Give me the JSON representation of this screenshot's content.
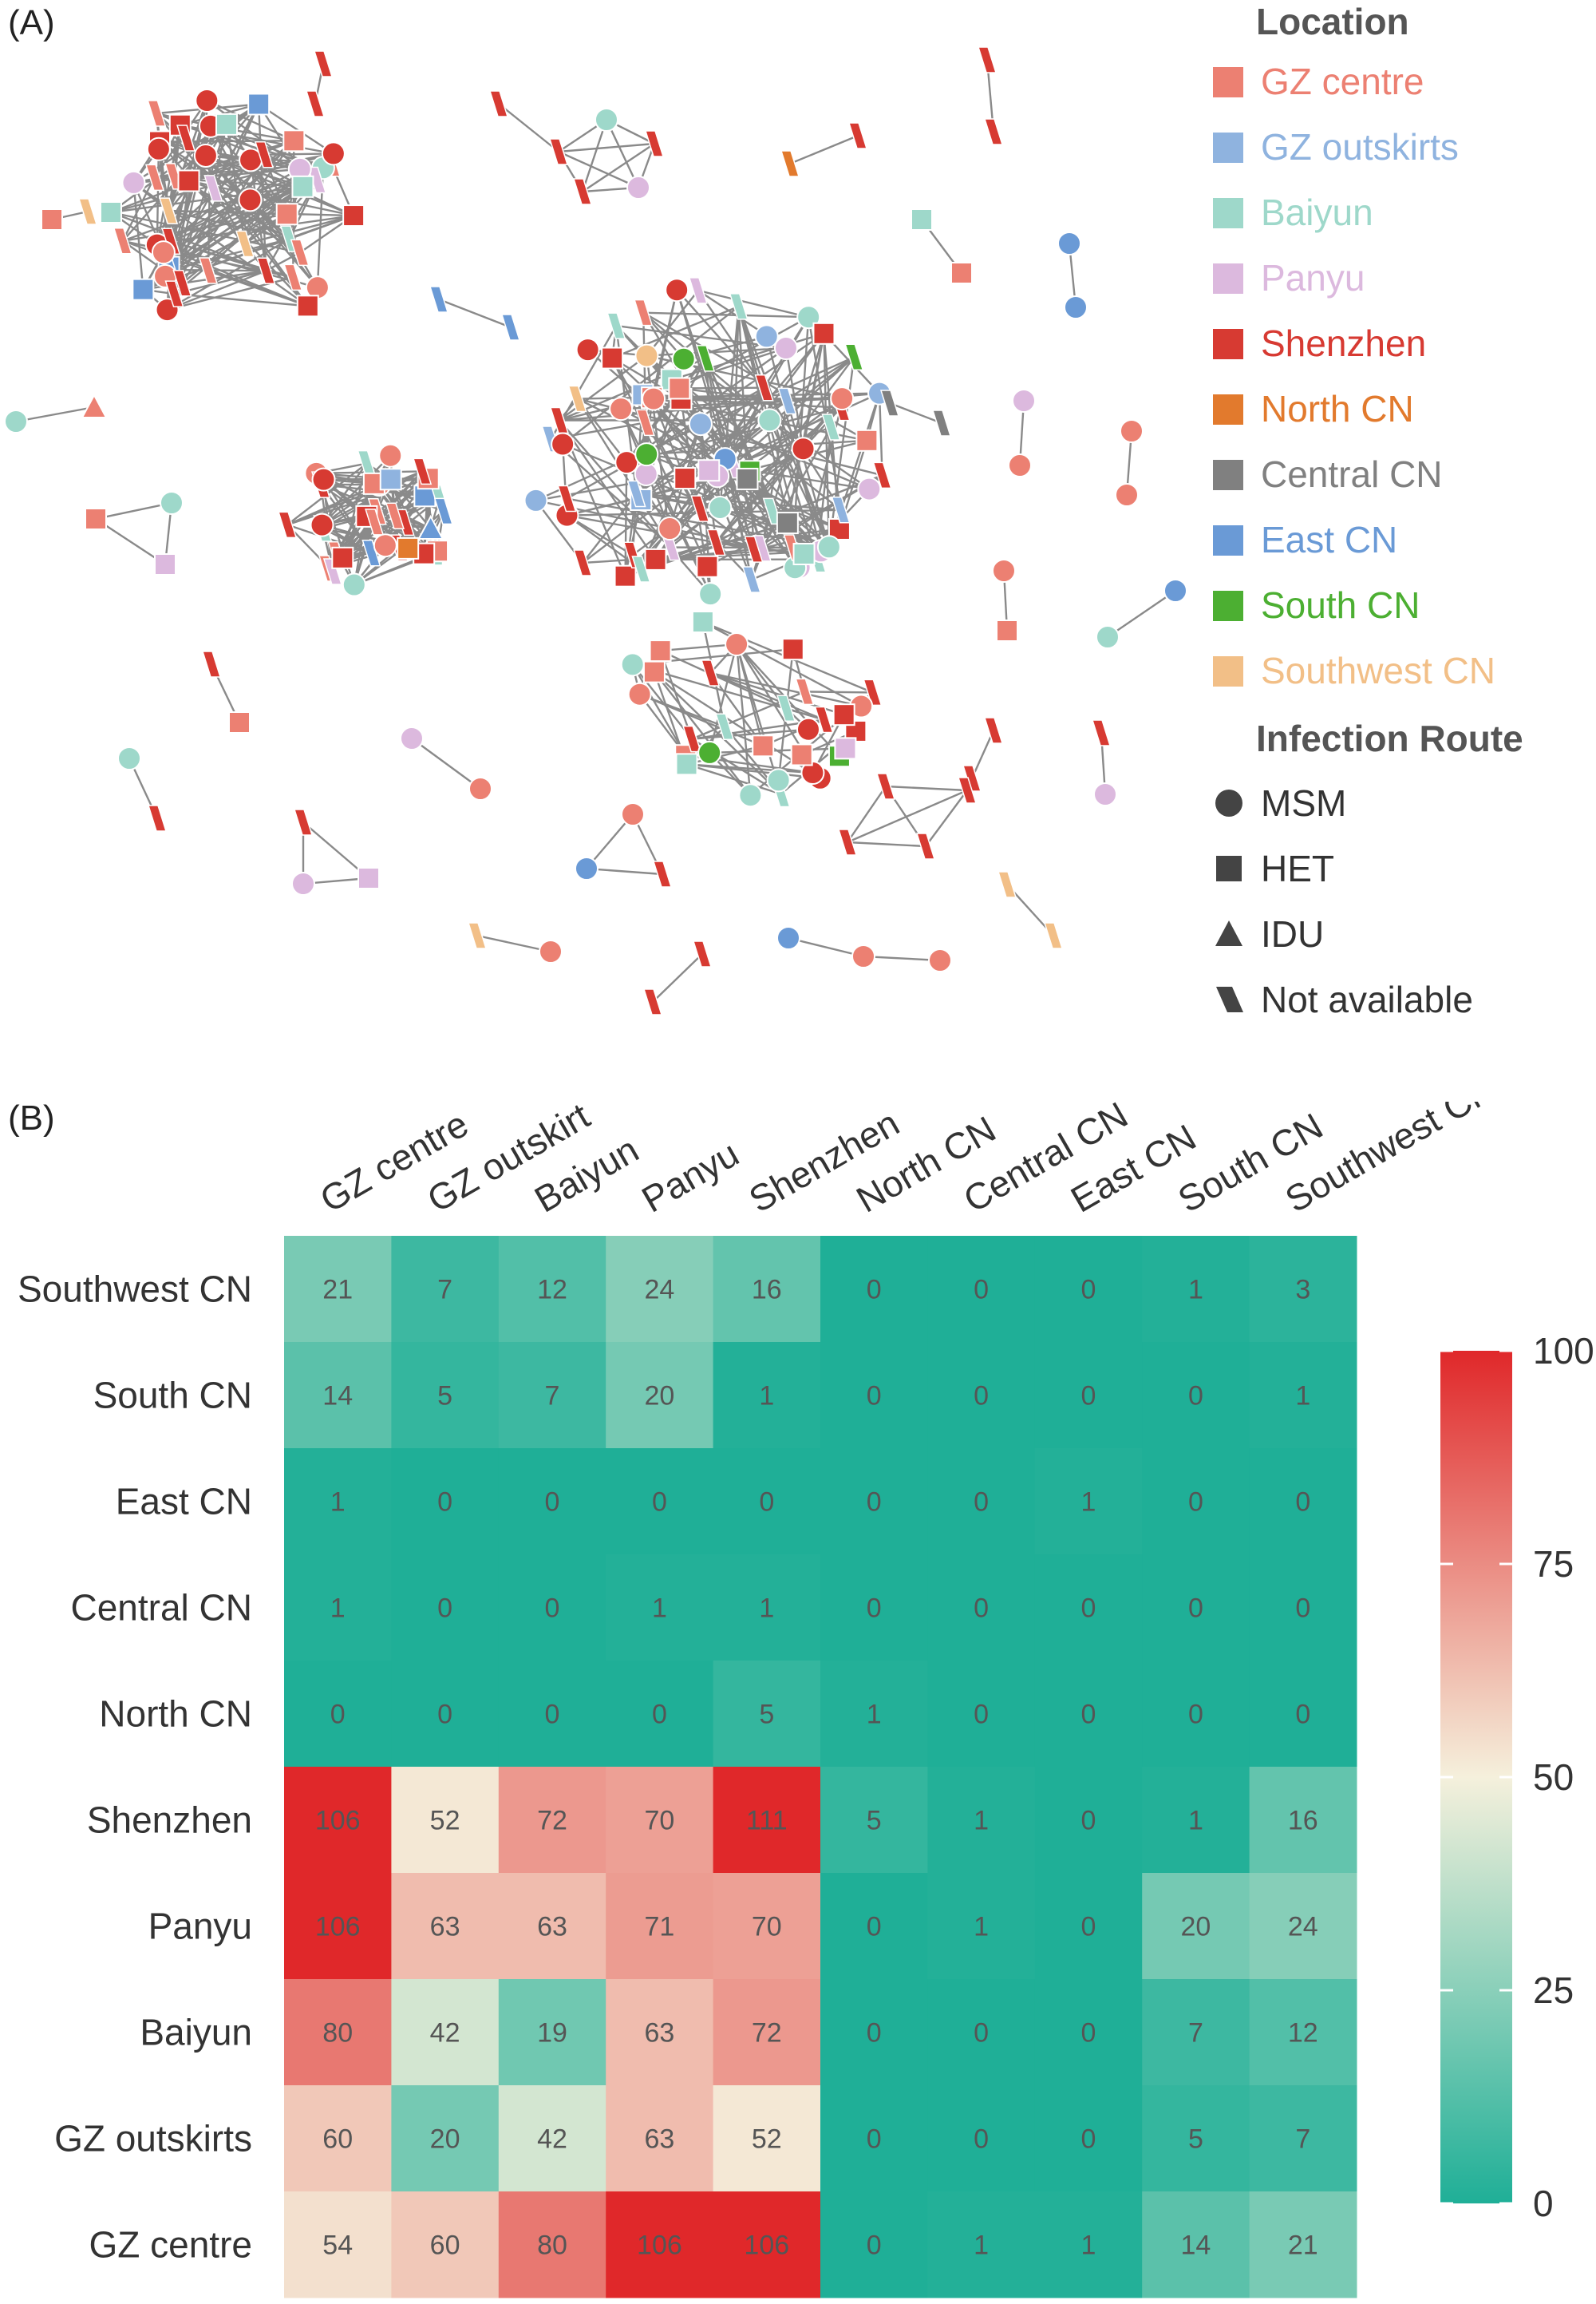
{
  "panels": {
    "a_label": "(A)",
    "b_label": "(B)"
  },
  "legend": {
    "location_title": "Location",
    "locations": [
      {
        "label": "GZ centre",
        "color": "#EC8072"
      },
      {
        "label": "GZ outskirts",
        "color": "#8FB3DF"
      },
      {
        "label": "Baiyun",
        "color": "#9ED8CA"
      },
      {
        "label": "Panyu",
        "color": "#DCB9DE"
      },
      {
        "label": "Shenzhen",
        "color": "#D73A32"
      },
      {
        "label": "North CN",
        "color": "#E27A2D"
      },
      {
        "label": "Central CN",
        "color": "#808080"
      },
      {
        "label": "East CN",
        "color": "#6A9AD6"
      },
      {
        "label": "South CN",
        "color": "#4CAF32"
      },
      {
        "label": "Southwest CN",
        "color": "#F2BF87"
      }
    ],
    "route_title": "Infection Route",
    "routes": [
      {
        "label": "MSM",
        "shape": "circle"
      },
      {
        "label": "HET",
        "shape": "square"
      },
      {
        "label": "IDU",
        "shape": "triangle"
      },
      {
        "label": "Not available",
        "shape": "parallelogram"
      }
    ]
  },
  "chart_data": [
    {
      "type": "network",
      "legend_placement": "right"
    },
    {
      "type": "heatmap",
      "x_categories": [
        "GZ centre",
        "GZ outskirt",
        "Baiyun",
        "Panyu",
        "Shenzhen",
        "North CN",
        "Central CN",
        "East CN",
        "South CN",
        "Southwest CN"
      ],
      "y_categories": [
        "Southwest CN",
        "South CN",
        "East CN",
        "Central CN",
        "North CN",
        "Shenzhen",
        "Panyu",
        "Baiyun",
        "GZ outskirts",
        "GZ centre"
      ],
      "values": [
        [
          21,
          7,
          12,
          24,
          16,
          0,
          0,
          0,
          1,
          3
        ],
        [
          14,
          5,
          7,
          20,
          1,
          0,
          0,
          0,
          0,
          1
        ],
        [
          1,
          0,
          0,
          0,
          0,
          0,
          0,
          1,
          0,
          0
        ],
        [
          1,
          0,
          0,
          1,
          1,
          0,
          0,
          0,
          0,
          0
        ],
        [
          0,
          0,
          0,
          0,
          5,
          1,
          0,
          0,
          0,
          0
        ],
        [
          106,
          52,
          72,
          70,
          111,
          5,
          1,
          0,
          1,
          16
        ],
        [
          106,
          63,
          63,
          71,
          70,
          0,
          1,
          0,
          20,
          24
        ],
        [
          80,
          42,
          19,
          63,
          72,
          0,
          0,
          0,
          7,
          12
        ],
        [
          60,
          20,
          42,
          63,
          52,
          0,
          0,
          0,
          5,
          7
        ],
        [
          54,
          60,
          80,
          106,
          106,
          0,
          1,
          1,
          14,
          21
        ]
      ],
      "colorbar": {
        "ticks": [
          0,
          25,
          50,
          75,
          100
        ],
        "min": 0,
        "max": 100,
        "low_color": "#1FAF97",
        "mid_color": "#F5F0DC",
        "high_color": "#E0282A"
      },
      "legend_placement": "right"
    }
  ]
}
